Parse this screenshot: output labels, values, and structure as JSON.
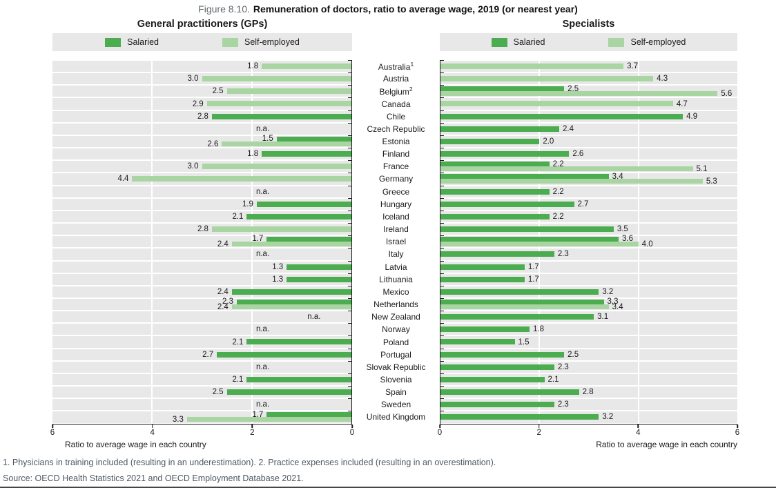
{
  "figure": {
    "label": "Figure 8.10.",
    "title": "Remuneration of doctors, ratio to average wage, 2019 (or nearest year)"
  },
  "legend": {
    "salaried": "Salaried",
    "self_employed": "Self-employed"
  },
  "axis": {
    "caption": "Ratio to average wage in each country",
    "gp_ticks": [
      "6",
      "4",
      "2",
      "0"
    ],
    "sp_ticks": [
      "0",
      "2",
      "4",
      "6"
    ],
    "max": 6
  },
  "na_text": "n.a.",
  "colors": {
    "salaried": "#4bac50",
    "self_employed": "#a9d5a2",
    "row_band": "#e8e8e8",
    "axis_line": "#1a1a1a",
    "note_text": "#4d5761"
  },
  "superscripts": {
    "Australia": "1",
    "Belgium": "2"
  },
  "footnotes": "1. Physicians in training included (resulting in an underestimation). 2. Practice expenses included (resulting in an overestimation).",
  "source": "Source: OECD Health Statistics 2021 and OECD Employment Database 2021.",
  "chart_data": [
    {
      "type": "bar",
      "title": "General practitioners (GPs)",
      "orientation": "horizontal",
      "axis_reversed": true,
      "xlim": [
        0,
        6
      ],
      "xlabel": "Ratio to average wage in each country",
      "categories": [
        "Australia",
        "Austria",
        "Belgium",
        "Canada",
        "Chile",
        "Czech Republic",
        "Estonia",
        "Finland",
        "France",
        "Germany",
        "Greece",
        "Hungary",
        "Iceland",
        "Ireland",
        "Israel",
        "Italy",
        "Latvia",
        "Lithuania",
        "Mexico",
        "Netherlands",
        "New Zealand",
        "Norway",
        "Poland",
        "Portugal",
        "Slovak Republic",
        "Slovenia",
        "Spain",
        "Sweden",
        "United Kingdom"
      ],
      "series": [
        {
          "name": "Salaried",
          "values": [
            null,
            null,
            null,
            null,
            2.8,
            null,
            1.5,
            1.8,
            null,
            null,
            null,
            1.9,
            2.1,
            null,
            1.7,
            null,
            1.3,
            1.3,
            2.4,
            2.3,
            null,
            null,
            2.1,
            2.7,
            null,
            2.1,
            2.5,
            null,
            1.7
          ]
        },
        {
          "name": "Self-employed",
          "values": [
            1.8,
            3.0,
            2.5,
            2.9,
            null,
            null,
            2.6,
            null,
            3.0,
            4.4,
            null,
            null,
            null,
            2.8,
            2.4,
            null,
            null,
            null,
            null,
            2.4,
            null,
            null,
            null,
            null,
            null,
            null,
            null,
            null,
            3.3
          ]
        }
      ],
      "na_rows": [
        5,
        10,
        15,
        20,
        21,
        24,
        27
      ],
      "na_positions": {
        "5": 1.78,
        "10": 1.78,
        "15": 1.78,
        "20": 0.75,
        "21": 1.78,
        "24": 1.78,
        "27": 1.78
      }
    },
    {
      "type": "bar",
      "title": "Specialists",
      "orientation": "horizontal",
      "axis_reversed": false,
      "xlim": [
        0,
        6
      ],
      "xlabel": "Ratio to average wage in each country",
      "categories": [
        "Australia",
        "Austria",
        "Belgium",
        "Canada",
        "Chile",
        "Czech Republic",
        "Estonia",
        "Finland",
        "France",
        "Germany",
        "Greece",
        "Hungary",
        "Iceland",
        "Ireland",
        "Israel",
        "Italy",
        "Latvia",
        "Lithuania",
        "Mexico",
        "Netherlands",
        "New Zealand",
        "Norway",
        "Poland",
        "Portugal",
        "Slovak Republic",
        "Slovenia",
        "Spain",
        "Sweden",
        "United Kingdom"
      ],
      "series": [
        {
          "name": "Salaried",
          "values": [
            null,
            null,
            2.5,
            null,
            4.9,
            2.4,
            2.0,
            2.6,
            2.2,
            3.4,
            2.2,
            2.7,
            2.2,
            3.5,
            3.6,
            2.3,
            1.7,
            1.7,
            3.2,
            3.3,
            3.1,
            1.8,
            1.5,
            2.5,
            2.3,
            2.1,
            2.8,
            2.3,
            3.2
          ]
        },
        {
          "name": "Self-employed",
          "values": [
            3.7,
            4.3,
            5.6,
            4.7,
            null,
            null,
            null,
            null,
            5.1,
            5.3,
            null,
            null,
            null,
            null,
            4.0,
            null,
            null,
            null,
            null,
            3.4,
            null,
            null,
            null,
            null,
            null,
            null,
            null,
            null,
            null
          ]
        }
      ],
      "na_rows": [],
      "na_positions": {}
    }
  ]
}
